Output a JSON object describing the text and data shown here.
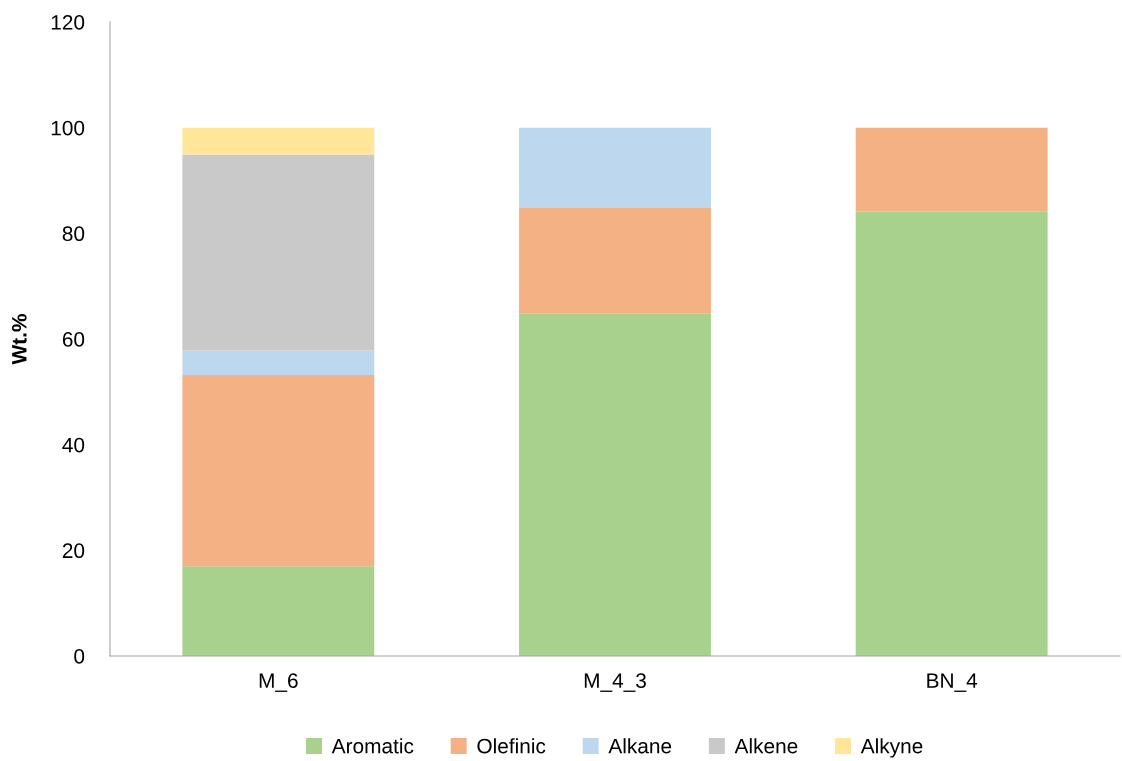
{
  "chart_data": {
    "type": "bar",
    "stacked": true,
    "ylabel": "Wt.%",
    "categories": [
      "M_6",
      "M_4_3",
      "BN_4"
    ],
    "series": [
      {
        "name": "Aromatic",
        "color": "#a9d18e",
        "values": [
          17.0,
          64.8,
          84.1
        ]
      },
      {
        "name": "Olefinic",
        "color": "#f4b183",
        "values": [
          36.2,
          20.0,
          15.9
        ]
      },
      {
        "name": "Alkane",
        "color": "#bdd7ee",
        "values": [
          4.6,
          15.2,
          null
        ]
      },
      {
        "name": "Alkene",
        "color": "#c9c9c9",
        "values": [
          37.1,
          null,
          null
        ]
      },
      {
        "name": "Alkyne",
        "color": "#ffe699",
        "values": [
          5.1,
          null,
          null
        ]
      }
    ],
    "ylim": [
      0,
      120
    ],
    "yticks": [
      0,
      20,
      40,
      60,
      80,
      100,
      120
    ],
    "grid": false,
    "legend": "bottom"
  }
}
